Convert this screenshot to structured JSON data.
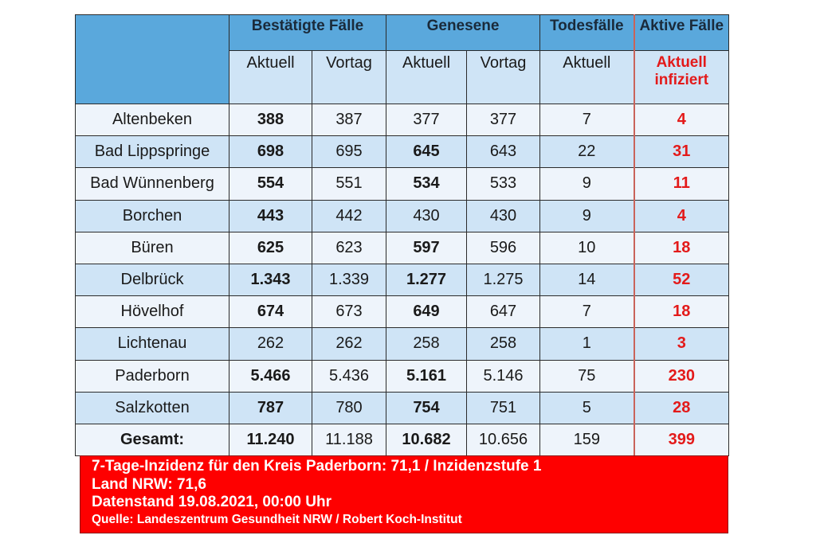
{
  "header": {
    "groups": [
      {
        "label": "Bestätigte Fälle",
        "span": 2
      },
      {
        "label": "Genesene",
        "span": 2
      },
      {
        "label": "Todesfälle",
        "span": 1
      },
      {
        "label": "Aktive Fälle",
        "span": 1
      }
    ],
    "subheaders": [
      "Aktuell",
      "Vortag",
      "Aktuell",
      "Vortag",
      "Aktuell"
    ],
    "active_subheader_line1": "Aktuell",
    "active_subheader_line2": "infiziert"
  },
  "rows": [
    {
      "name": "Altenbeken",
      "best_akt": "388",
      "best_vor": "387",
      "gen_akt": "377",
      "gen_vor": "377",
      "tod": "7",
      "aktiv": "4"
    },
    {
      "name": "Bad Lippspringe",
      "best_akt": "698",
      "best_vor": "695",
      "gen_akt": "645",
      "gen_vor": "643",
      "tod": "22",
      "aktiv": "31"
    },
    {
      "name": "Bad Wünnenberg",
      "best_akt": "554",
      "best_vor": "551",
      "gen_akt": "534",
      "gen_vor": "533",
      "tod": "9",
      "aktiv": "11"
    },
    {
      "name": "Borchen",
      "best_akt": "443",
      "best_vor": "442",
      "gen_akt": "430",
      "gen_vor": "430",
      "tod": "9",
      "aktiv": "4"
    },
    {
      "name": "Büren",
      "best_akt": "625",
      "best_vor": "623",
      "gen_akt": "597",
      "gen_vor": "596",
      "tod": "10",
      "aktiv": "18"
    },
    {
      "name": "Delbrück",
      "best_akt": "1.343",
      "best_vor": "1.339",
      "gen_akt": "1.277",
      "gen_vor": "1.275",
      "tod": "14",
      "aktiv": "52"
    },
    {
      "name": "Hövelhof",
      "best_akt": "674",
      "best_vor": "673",
      "gen_akt": "649",
      "gen_vor": "647",
      "tod": "7",
      "aktiv": "18"
    },
    {
      "name": "Lichtenau",
      "best_akt": "262",
      "best_vor": "262",
      "gen_akt": "258",
      "gen_vor": "258",
      "tod": "1",
      "aktiv": "3"
    },
    {
      "name": "Paderborn",
      "best_akt": "5.466",
      "best_vor": "5.436",
      "gen_akt": "5.161",
      "gen_vor": "5.146",
      "tod": "75",
      "aktiv": "230"
    },
    {
      "name": "Salzkotten",
      "best_akt": "787",
      "best_vor": "780",
      "gen_akt": "754",
      "gen_vor": "751",
      "tod": "5",
      "aktiv": "28"
    }
  ],
  "total": {
    "name": "Gesamt:",
    "best_akt": "11.240",
    "best_vor": "11.188",
    "gen_akt": "10.682",
    "gen_vor": "10.656",
    "tod": "159",
    "aktiv": "399"
  },
  "info": {
    "line1": "7-Tage-Inzidenz für den Kreis Paderborn: 71,1 / Inzidenzstufe 1",
    "line2": "Land NRW: 71,6",
    "line3": "Datenstand 19.08.2021, 00:00 Uhr",
    "line4": "Quelle: Landeszentrum Gesundheit NRW / Robert Koch-Institut"
  },
  "colors": {
    "header_blue": "#5aa8dc",
    "subheader_blue": "#cfe4f6",
    "row_light": "#eef4fb",
    "row_dark": "#cfe4f6",
    "active_red": "#e31a1a",
    "info_red": "#fe0000"
  }
}
